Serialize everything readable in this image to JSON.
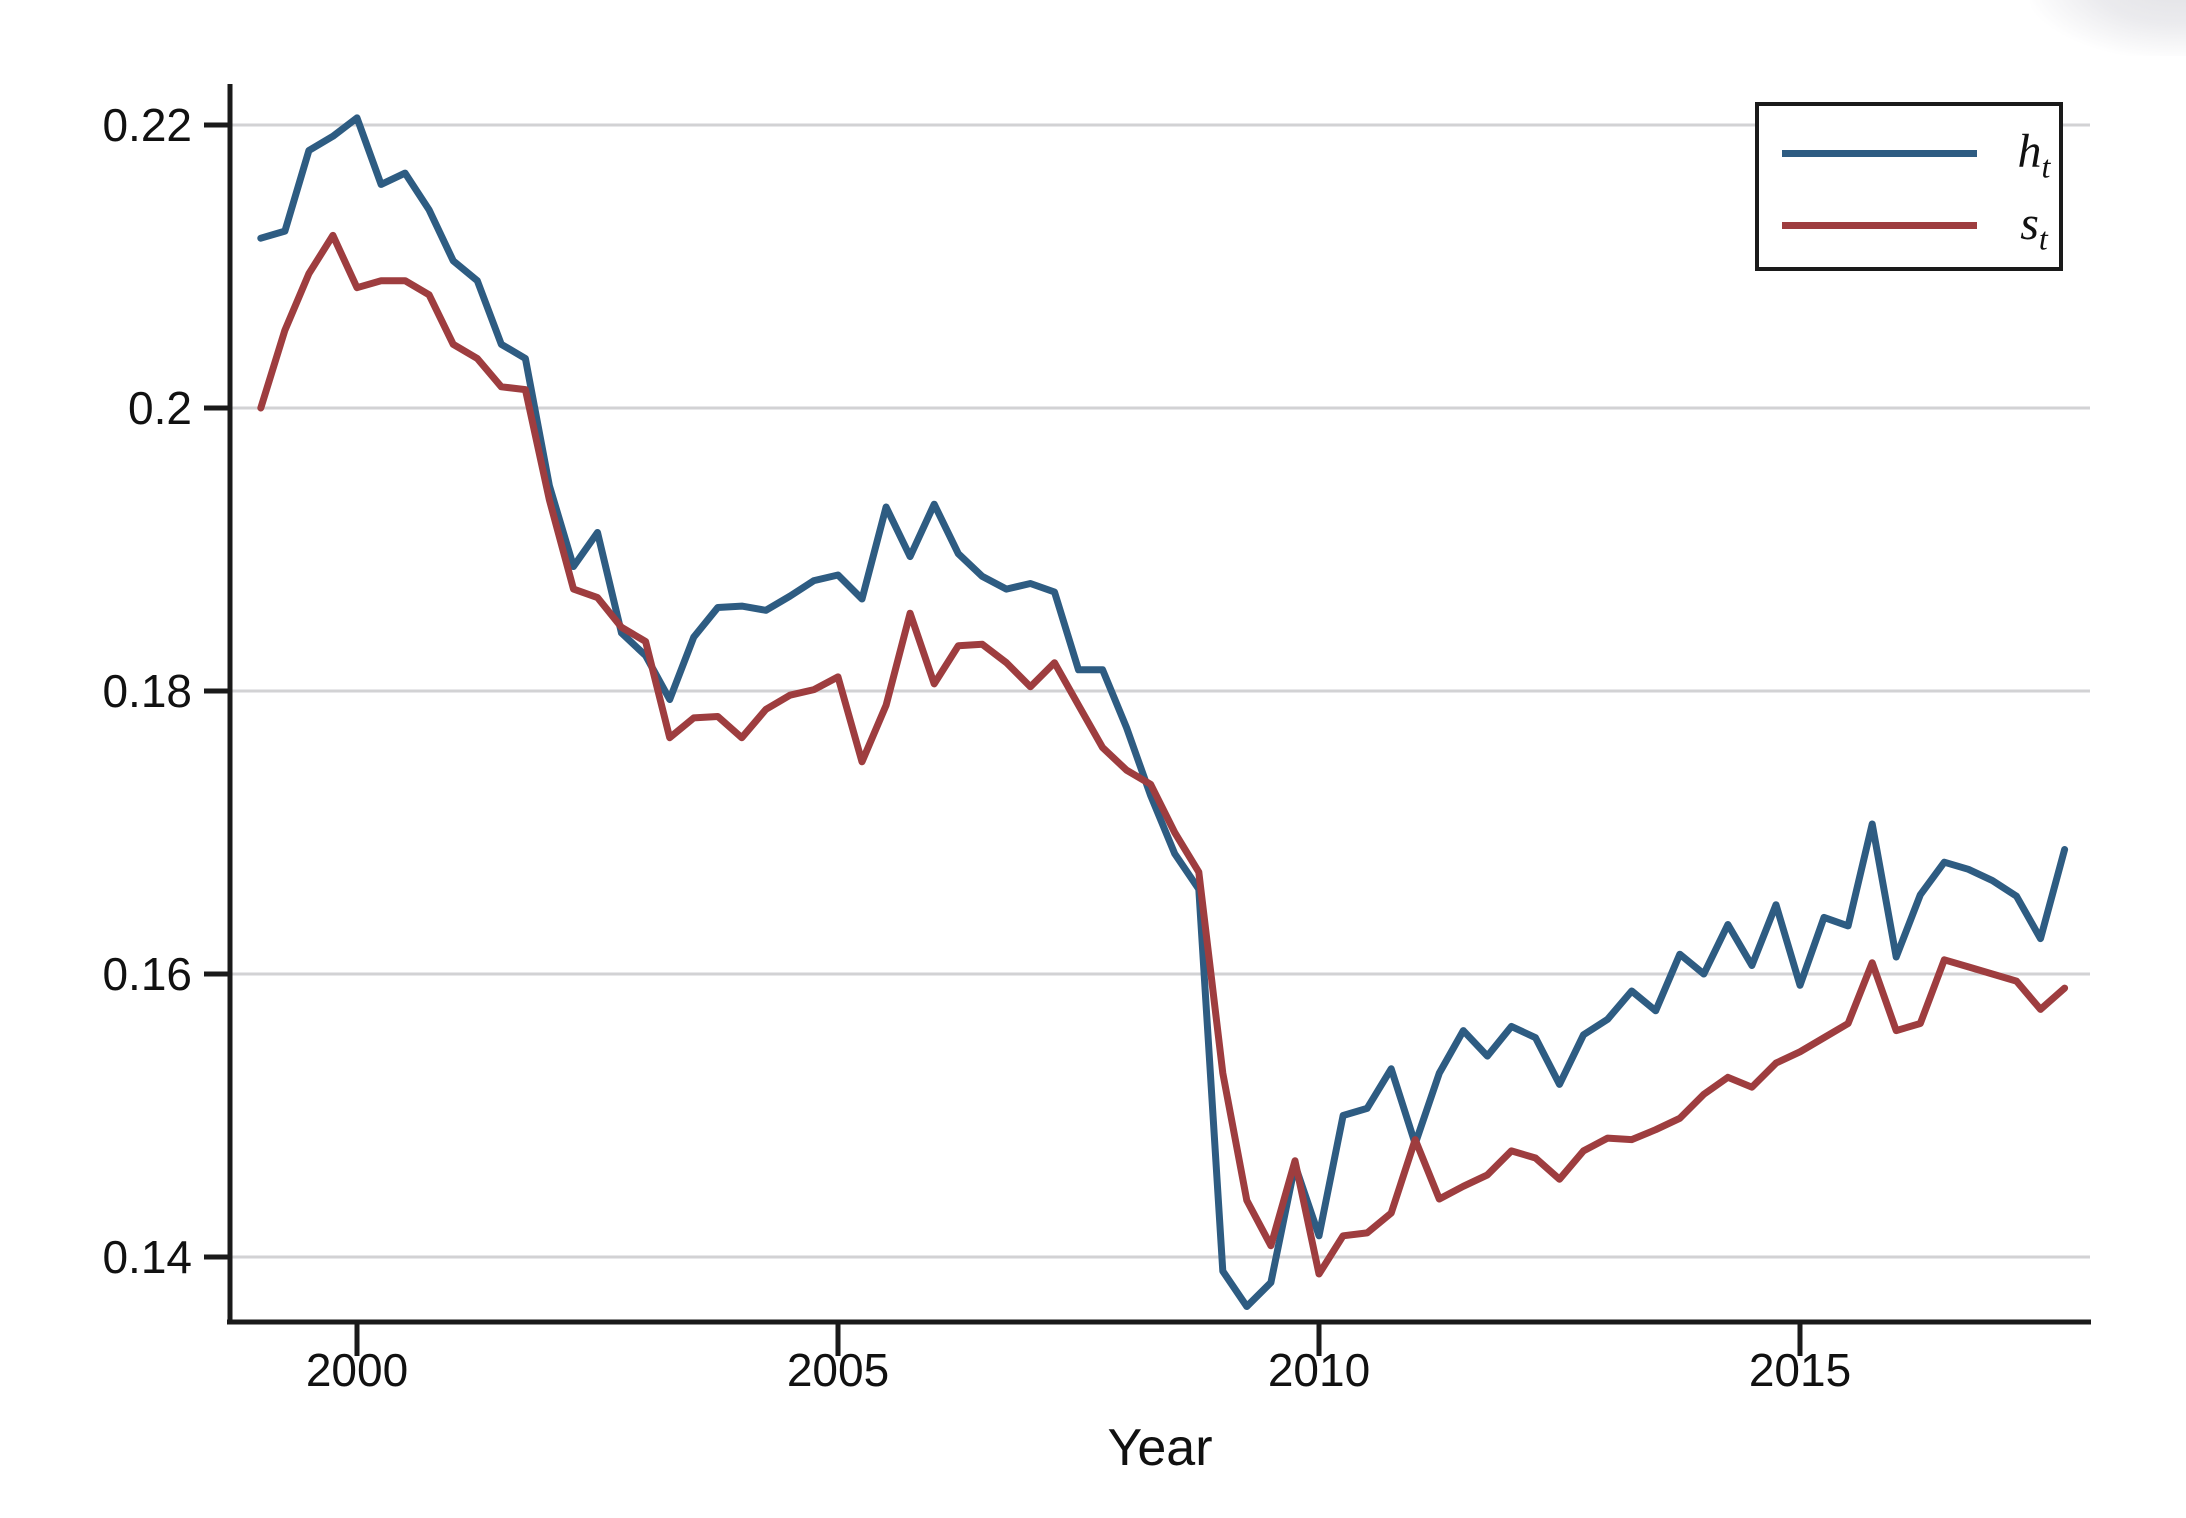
{
  "chart_data": {
    "type": "line",
    "title": "",
    "xlabel": "Year",
    "grid": "horizontal",
    "legend_position": "top-right",
    "x": [
      1999.0,
      1999.25,
      1999.5,
      1999.75,
      2000.0,
      2000.25,
      2000.5,
      2000.75,
      2001.0,
      2001.25,
      2001.5,
      2001.75,
      2002.0,
      2002.25,
      2002.5,
      2002.75,
      2003.0,
      2003.25,
      2003.5,
      2003.75,
      2004.0,
      2004.25,
      2004.5,
      2004.75,
      2005.0,
      2005.25,
      2005.5,
      2005.75,
      2006.0,
      2006.25,
      2006.5,
      2006.75,
      2007.0,
      2007.25,
      2007.5,
      2007.75,
      2008.0,
      2008.25,
      2008.5,
      2008.75,
      2009.0,
      2009.25,
      2009.5,
      2009.75,
      2010.0,
      2010.25,
      2010.5,
      2010.75,
      2011.0,
      2011.25,
      2011.5,
      2011.75,
      2012.0,
      2012.25,
      2012.5,
      2012.75,
      2013.0,
      2013.25,
      2013.5,
      2013.75,
      2014.0,
      2014.25,
      2014.5,
      2014.75,
      2015.0,
      2015.25,
      2015.5,
      2015.75,
      2016.0,
      2016.25,
      2016.5,
      2016.75,
      2017.0,
      2017.25,
      2017.5,
      2017.75
    ],
    "series": [
      {
        "name": "h_t",
        "legend_base": "h",
        "legend_sub": "t",
        "color": "#2E5C82",
        "values": [
          0.212,
          0.2125,
          0.2182,
          0.2192,
          0.2205,
          0.2158,
          0.2166,
          0.214,
          0.2104,
          0.209,
          0.2045,
          0.2035,
          0.1945,
          0.1888,
          0.1912,
          0.1841,
          0.1825,
          0.1794,
          0.1838,
          0.1859,
          0.186,
          0.1857,
          0.1867,
          0.1878,
          0.1882,
          0.1865,
          0.193,
          0.1895,
          0.1932,
          0.1897,
          0.1881,
          0.1872,
          0.1876,
          0.187,
          0.1815,
          0.1815,
          0.1774,
          0.1726,
          0.1685,
          0.166,
          0.139,
          0.1365,
          0.1382,
          0.1465,
          0.1415,
          0.15,
          0.1505,
          0.1533,
          0.148,
          0.153,
          0.156,
          0.1542,
          0.1563,
          0.1555,
          0.1522,
          0.1557,
          0.1568,
          0.1588,
          0.1574,
          0.1614,
          0.16,
          0.1635,
          0.1606,
          0.1649,
          0.1592,
          0.164,
          0.1634,
          0.1706,
          0.1612,
          0.1656,
          0.1679,
          0.1674,
          0.1666,
          0.1655,
          0.1625,
          0.1688
        ]
      },
      {
        "name": "s_t",
        "legend_base": "s",
        "legend_sub": "t",
        "color": "#9E3D3F",
        "values": [
          0.2,
          0.2055,
          0.2095,
          0.2122,
          0.2085,
          0.209,
          0.209,
          0.208,
          0.2045,
          0.2035,
          0.2015,
          0.2013,
          0.1935,
          0.1872,
          0.1866,
          0.1845,
          0.1835,
          0.1767,
          0.1781,
          0.1782,
          0.1767,
          0.1787,
          0.1797,
          0.1801,
          0.181,
          0.175,
          0.179,
          0.1855,
          0.1805,
          0.1832,
          0.1833,
          0.182,
          0.1803,
          0.182,
          0.179,
          0.176,
          0.1744,
          0.1734,
          0.17,
          0.1672,
          0.153,
          0.144,
          0.1408,
          0.1468,
          0.1388,
          0.1415,
          0.1417,
          0.1431,
          0.1483,
          0.1441,
          0.145,
          0.1458,
          0.1475,
          0.147,
          0.1455,
          0.1475,
          0.1484,
          0.1483,
          0.149,
          0.1498,
          0.1515,
          0.1527,
          0.152,
          0.1537,
          0.1545,
          0.1555,
          0.1565,
          0.1608,
          0.156,
          0.1565,
          0.161,
          0.1605,
          0.16,
          0.1595,
          0.1575,
          0.159
        ]
      }
    ],
    "y_axis": {
      "range": [
        0.1353,
        0.2229
      ],
      "ticks": [
        {
          "value": 0.22,
          "label": "0.22"
        },
        {
          "value": 0.2,
          "label": "0.2"
        },
        {
          "value": 0.18,
          "label": "0.18"
        },
        {
          "value": 0.16,
          "label": "0.16"
        },
        {
          "value": 0.14,
          "label": "0.14"
        }
      ]
    },
    "x_axis": {
      "range": [
        1998.7,
        2018.1
      ],
      "ticks": [
        {
          "value": 2000,
          "label": "2000"
        },
        {
          "value": 2005,
          "label": "2005"
        },
        {
          "value": 2010,
          "label": "2010"
        },
        {
          "value": 2015,
          "label": "2015"
        }
      ]
    }
  },
  "colors": {
    "gridline": "#d2d2d4",
    "axis": "#1a1a1a",
    "text": "#111111",
    "background": "#ffffff"
  }
}
